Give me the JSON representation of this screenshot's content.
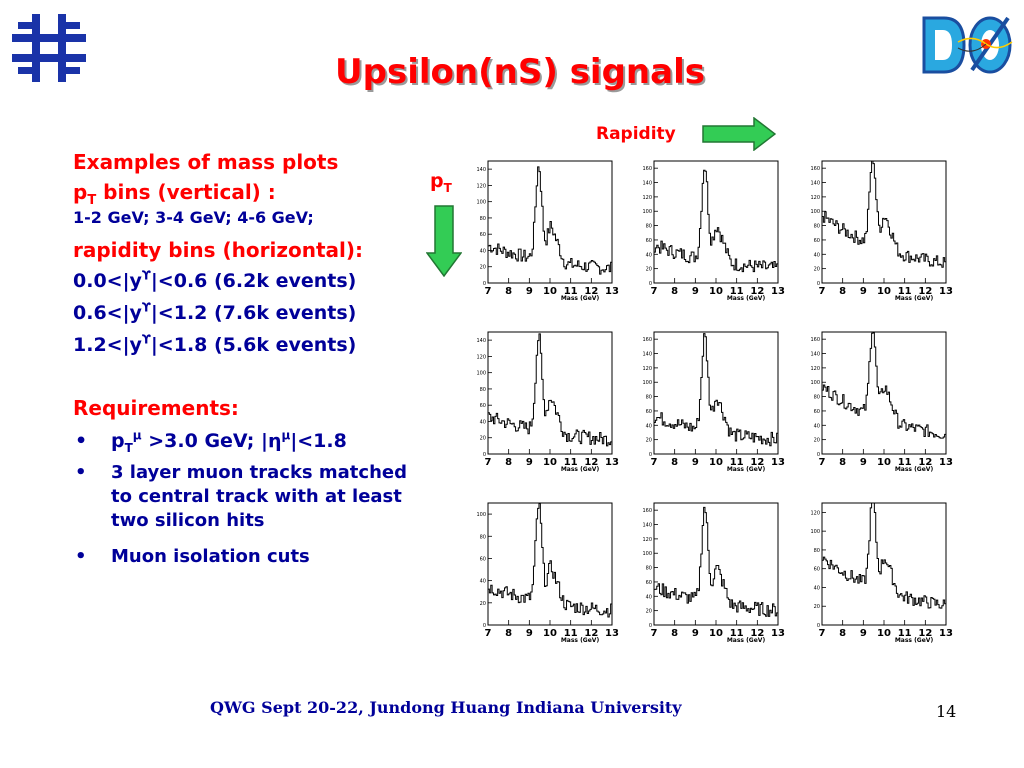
{
  "title": "Upsilon(nS) signals",
  "rapidity_label": "Rapidity",
  "pt_label": {
    "main": "p",
    "sub": "T"
  },
  "left": {
    "line1": "Examples of  mass plots",
    "line2_pre": "p",
    "line2_sub": "T",
    "line2_post": " bins (vertical) :",
    "line3": "1-2 GeV; 3-4 GeV; 4-6 GeV;",
    "line4": "rapidity bins (horizontal):",
    "rbin1_pre": "0.0<|y",
    "rbin1_post": "|<0.6  (6.2k events)",
    "rbin2_pre": "0.6<|y",
    "rbin2_post": "|<1.2  (7.6k events)",
    "rbin3_pre": "1.2<|y",
    "rbin3_post": "|<1.8  (5.6k events)",
    "upsilon_symbol": "ϒ",
    "requirements": "Requirements:",
    "bullet_symbol": "•",
    "req1_p": "p",
    "req1_sub": "T",
    "req1_sup": "μ",
    "req1_mid": " >3.0 GeV; |",
    "req1_eta": "η",
    "req1_sup2": "μ",
    "req1_end": "|<1.8",
    "req2": "3 layer muon tracks matched",
    "req2b": "to central track with at least",
    "req2c": "two silicon hits",
    "req3": "Muon isolation cuts"
  },
  "footer": {
    "conf": "QWG Sept 20-22",
    "sep": ", ",
    "author": "Jundong Huang  Indiana University"
  },
  "page_number": "14",
  "icons": {
    "left_logo": "fermilab-logo-icon",
    "right_logo": "dzero-logo-icon",
    "arrow_right": "right-arrow-icon",
    "arrow_down": "down-arrow-icon"
  },
  "colors": {
    "title": "#ff0000",
    "text_red": "#ff0000",
    "text_blue": "#000099",
    "logo_blue": "#1a33a8",
    "arrow_green": "#33cc55"
  },
  "chart_data": {
    "type": "line",
    "x_ticks": [
      "7",
      "8",
      "9",
      "10",
      "11",
      "12",
      "13"
    ],
    "x_label": "Mass (GeV)",
    "panels": [
      {
        "y_ticks": [
          "0",
          "20",
          "40",
          "60",
          "80",
          "100",
          "120",
          "140"
        ],
        "ylim": [
          0,
          150
        ],
        "peak": 140
      },
      {
        "y_ticks": [
          "0",
          "20",
          "40",
          "60",
          "80",
          "100",
          "120",
          "140",
          "160"
        ],
        "ylim": [
          0,
          170
        ],
        "peak": 160
      },
      {
        "y_ticks": [
          "0",
          "20",
          "40",
          "60",
          "80",
          "100",
          "120",
          "140",
          "160"
        ],
        "ylim": [
          0,
          170
        ],
        "peak": 150
      },
      {
        "y_ticks": [
          "0",
          "20",
          "40",
          "60",
          "80",
          "100",
          "120",
          "140"
        ],
        "ylim": [
          0,
          150
        ],
        "peak": 140
      },
      {
        "y_ticks": [
          "0",
          "20",
          "40",
          "60",
          "80",
          "100",
          "120",
          "140",
          "160"
        ],
        "ylim": [
          0,
          170
        ],
        "peak": 160
      },
      {
        "y_ticks": [
          "0",
          "20",
          "40",
          "60",
          "80",
          "100",
          "120",
          "140",
          "160"
        ],
        "ylim": [
          0,
          170
        ],
        "peak": 150
      },
      {
        "y_ticks": [
          "0",
          "20",
          "40",
          "60",
          "80",
          "100"
        ],
        "ylim": [
          0,
          110
        ],
        "peak": 105
      },
      {
        "y_ticks": [
          "0",
          "20",
          "40",
          "60",
          "80",
          "100",
          "120",
          "140",
          "160"
        ],
        "ylim": [
          0,
          170
        ],
        "peak": 160
      },
      {
        "y_ticks": [
          "0",
          "20",
          "40",
          "60",
          "80",
          "100",
          "120"
        ],
        "ylim": [
          0,
          130
        ],
        "peak": 115
      }
    ]
  }
}
